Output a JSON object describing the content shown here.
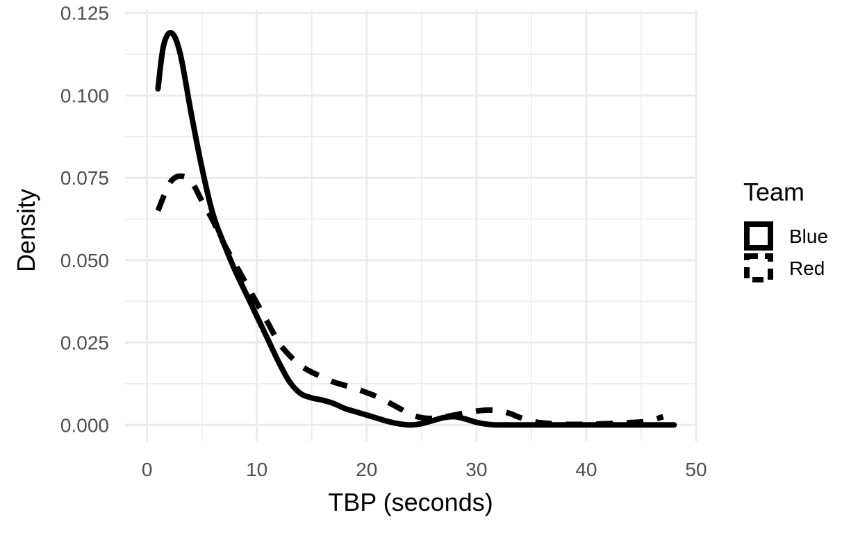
{
  "chart_data": {
    "type": "line",
    "title": "",
    "xlabel": "TBP (seconds)",
    "ylabel": "Density",
    "xlim": [
      -2,
      50
    ],
    "ylim": [
      -0.005,
      0.126
    ],
    "x_ticks": [
      0,
      10,
      20,
      30,
      40,
      50
    ],
    "x_tick_labels": [
      "0",
      "10",
      "20",
      "30",
      "40",
      "50"
    ],
    "y_ticks": [
      0,
      0.025,
      0.05,
      0.075,
      0.1,
      0.125
    ],
    "y_tick_labels": [
      "0.000",
      "0.025",
      "0.050",
      "0.075",
      "0.100",
      "0.125"
    ],
    "grid": true,
    "legend": {
      "title": "Team",
      "placement": "right"
    },
    "series": [
      {
        "name": "Blue",
        "linetype": "solid",
        "color": "#000000",
        "points": [
          [
            1,
            0.102
          ],
          [
            1.5,
            0.115
          ],
          [
            2.2,
            0.119
          ],
          [
            3,
            0.113
          ],
          [
            4,
            0.095
          ],
          [
            5,
            0.078
          ],
          [
            6,
            0.064
          ],
          [
            7,
            0.055
          ],
          [
            8,
            0.047
          ],
          [
            9,
            0.04
          ],
          [
            10,
            0.033
          ],
          [
            11,
            0.026
          ],
          [
            12,
            0.019
          ],
          [
            13,
            0.013
          ],
          [
            14,
            0.0095
          ],
          [
            15,
            0.0082
          ],
          [
            16,
            0.0075
          ],
          [
            17,
            0.0065
          ],
          [
            18,
            0.005
          ],
          [
            19,
            0.004
          ],
          [
            20,
            0.003
          ],
          [
            21,
            0.002
          ],
          [
            22,
            0.001
          ],
          [
            23,
            0.0003
          ],
          [
            24,
            0.0
          ],
          [
            25,
            0.0004
          ],
          [
            26,
            0.0013
          ],
          [
            27,
            0.0022
          ],
          [
            28,
            0.0025
          ],
          [
            29,
            0.0018
          ],
          [
            30,
            0.0008
          ],
          [
            31,
            0.0002
          ],
          [
            32,
            0.0
          ],
          [
            35,
            0.0
          ],
          [
            40,
            0.0
          ],
          [
            44,
            0.0
          ],
          [
            48,
            0.0
          ]
        ]
      },
      {
        "name": "Red",
        "linetype": "dashed",
        "color": "#000000",
        "points": [
          [
            1,
            0.065
          ],
          [
            1.6,
            0.07
          ],
          [
            2.2,
            0.074
          ],
          [
            3,
            0.0755
          ],
          [
            4,
            0.074
          ],
          [
            5,
            0.068
          ],
          [
            6,
            0.062
          ],
          [
            7,
            0.055
          ],
          [
            8,
            0.049
          ],
          [
            9,
            0.043
          ],
          [
            10,
            0.037
          ],
          [
            11,
            0.031
          ],
          [
            12,
            0.025
          ],
          [
            13,
            0.021
          ],
          [
            14,
            0.018
          ],
          [
            15,
            0.016
          ],
          [
            16,
            0.0145
          ],
          [
            17,
            0.013
          ],
          [
            18,
            0.012
          ],
          [
            19,
            0.011
          ],
          [
            20,
            0.0098
          ],
          [
            21,
            0.0085
          ],
          [
            22,
            0.0068
          ],
          [
            23,
            0.005
          ],
          [
            24,
            0.0032
          ],
          [
            25,
            0.0022
          ],
          [
            26,
            0.002
          ],
          [
            27,
            0.0024
          ],
          [
            28,
            0.003
          ],
          [
            29,
            0.0037
          ],
          [
            30,
            0.0042
          ],
          [
            31,
            0.0045
          ],
          [
            32,
            0.0043
          ],
          [
            33,
            0.0035
          ],
          [
            34,
            0.0022
          ],
          [
            35,
            0.0012
          ],
          [
            36,
            0.0006
          ],
          [
            38,
            0.0002
          ],
          [
            40,
            0.0002
          ],
          [
            42,
            0.0004
          ],
          [
            43,
            0.0005
          ],
          [
            44,
            0.0007
          ],
          [
            45,
            0.0009
          ],
          [
            46,
            0.0015
          ],
          [
            47,
            0.0025
          ]
        ]
      }
    ]
  }
}
